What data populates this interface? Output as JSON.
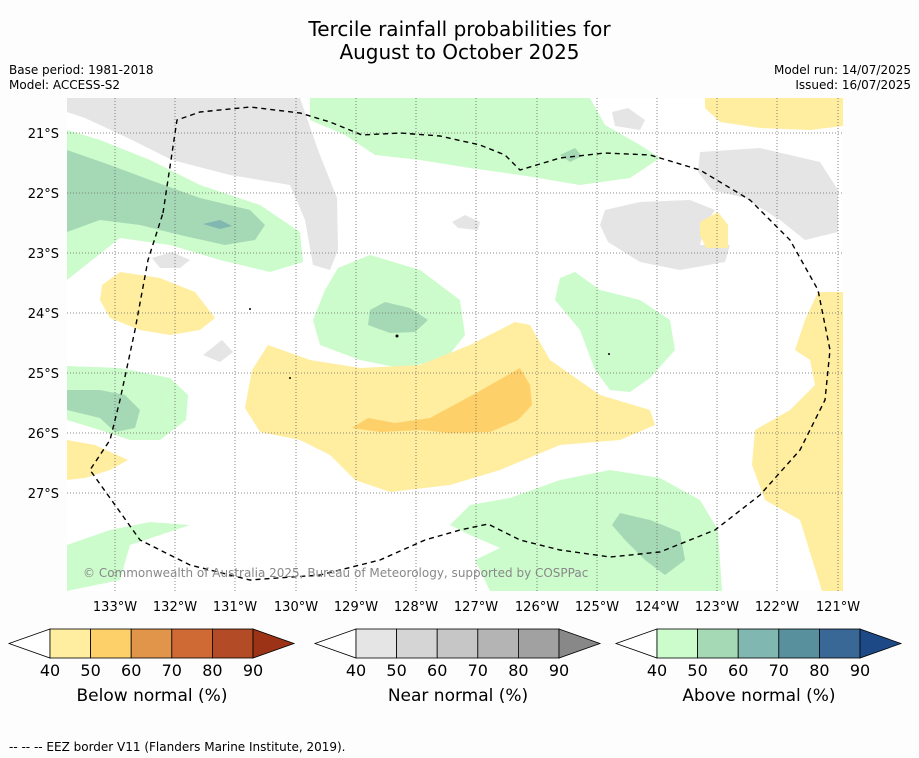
{
  "header": {
    "title_line1": "Tercile rainfall probabilities for",
    "title_line2": "August to October 2025",
    "base_period": "Base period: 1981-2018",
    "model": "Model: ACCESS-S2",
    "model_run": "Model run: 14/07/2025",
    "issued": "Issued: 16/07/2025"
  },
  "map": {
    "lat_labels": [
      "21°S",
      "22°S",
      "23°S",
      "24°S",
      "25°S",
      "26°S",
      "27°S"
    ],
    "lon_labels": [
      "133°W",
      "132°W",
      "131°W",
      "130°W",
      "129°W",
      "128°W",
      "127°W",
      "126°W",
      "125°W",
      "124°W",
      "123°W",
      "122°W",
      "121°W"
    ],
    "copyright": "© Commonwealth of Australia 2025, Bureau of Meteorology, supported by COSPPac"
  },
  "colorbars": [
    {
      "label": "Below normal (%)",
      "ticks": [
        "40",
        "50",
        "60",
        "70",
        "80",
        "90"
      ],
      "colors": [
        "#ffeda0",
        "#fed06a",
        "#e0954a",
        "#cf6a34",
        "#b24b26"
      ],
      "under": "#ffffff",
      "over": "#9c3317"
    },
    {
      "label": "Near normal (%)",
      "ticks": [
        "40",
        "50",
        "60",
        "70",
        "80",
        "90"
      ],
      "colors": [
        "#e5e5e5",
        "#d5d5d5",
        "#c6c6c6",
        "#b4b4b4",
        "#a1a1a1"
      ],
      "under": "#ffffff",
      "over": "#888888"
    },
    {
      "label": "Above normal (%)",
      "ticks": [
        "40",
        "50",
        "60",
        "70",
        "80",
        "90"
      ],
      "colors": [
        "#ccfccb",
        "#a5d9b5",
        "#80b7b1",
        "#58909d",
        "#3a6896"
      ],
      "under": "#ffffff",
      "over": "#1d4a86"
    }
  ],
  "footer": "--  --  -- EEZ border V11 (Flanders Marine Institute, 2019)."
}
